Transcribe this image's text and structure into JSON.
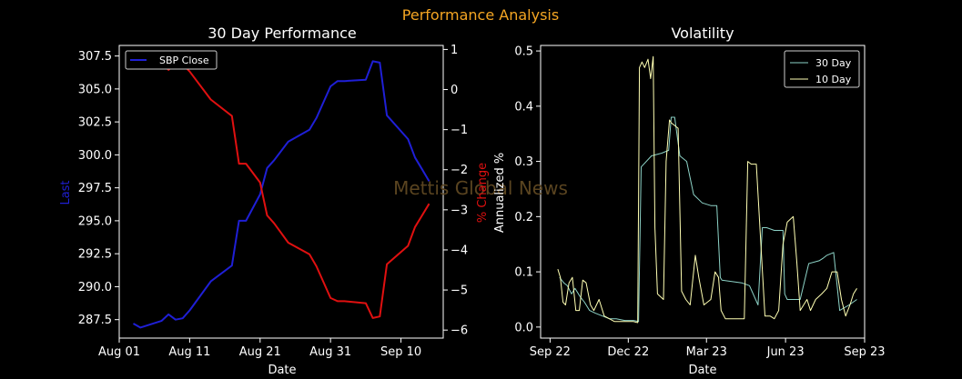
{
  "suptitle": "Performance Analysis",
  "watermark": "Mettis Global News",
  "colors": {
    "background": "#000000",
    "suptitle": "#f5a623",
    "axes": "#ffffff",
    "last_series": "#1f1fd6",
    "pct_series": "#e01010",
    "vol30": "#8dd3c7",
    "vol10": "#ffffb3",
    "watermark": "#5a4420"
  },
  "chart_data": [
    {
      "type": "line",
      "title": "30 Day Performance",
      "xlabel": "Date",
      "ylabel": "Last",
      "ylabel_right": "% Change",
      "xlim": [
        "2023-08-01",
        "2023-09-16"
      ],
      "ylim": [
        286.1,
        308.3
      ],
      "ylim_right": [
        -6.2,
        1.1
      ],
      "x_ticks": [
        {
          "date": "2023-08-01",
          "label": "Aug 01"
        },
        {
          "date": "2023-08-11",
          "label": "Aug 11"
        },
        {
          "date": "2023-08-21",
          "label": "Aug 21"
        },
        {
          "date": "2023-08-31",
          "label": "Aug 31"
        },
        {
          "date": "2023-09-10",
          "label": "Sep 10"
        }
      ],
      "y_ticks": [
        "287.5",
        "290.0",
        "292.5",
        "295.0",
        "297.5",
        "300.0",
        "302.5",
        "305.0",
        "307.5"
      ],
      "y_ticks_right": [
        "1",
        "0",
        "-1",
        "-2",
        "-3",
        "-4",
        "-5",
        "-6"
      ],
      "legend": {
        "position": "top-left",
        "entries": [
          "SBP Close"
        ]
      },
      "grid": false,
      "series": [
        {
          "name": "SBP Close",
          "axis": "left",
          "x": [
            "2023-08-03",
            "2023-08-04",
            "2023-08-07",
            "2023-08-08",
            "2023-08-09",
            "2023-08-10",
            "2023-08-11",
            "2023-08-14",
            "2023-08-17",
            "2023-08-18",
            "2023-08-19",
            "2023-08-21",
            "2023-08-22",
            "2023-08-23",
            "2023-08-25",
            "2023-08-28",
            "2023-08-29",
            "2023-08-31",
            "2023-09-01",
            "2023-09-02",
            "2023-09-05",
            "2023-09-06",
            "2023-09-07",
            "2023-09-08",
            "2023-09-11",
            "2023-09-12",
            "2023-09-13",
            "2023-09-14"
          ],
          "values": [
            287.2,
            286.9,
            287.4,
            287.9,
            287.5,
            287.6,
            288.2,
            290.4,
            291.6,
            295.0,
            295.0,
            297.0,
            299.0,
            299.6,
            301.0,
            301.9,
            302.8,
            305.2,
            305.6,
            305.6,
            305.7,
            307.1,
            307.0,
            303.0,
            301.2,
            299.8,
            298.9,
            298.0
          ]
        },
        {
          "name": "% Change",
          "axis": "right",
          "x": [
            "2023-08-03",
            "2023-08-04",
            "2023-08-07",
            "2023-08-08",
            "2023-08-09",
            "2023-08-10",
            "2023-08-11",
            "2023-08-14",
            "2023-08-17",
            "2023-08-18",
            "2023-08-19",
            "2023-08-21",
            "2023-08-22",
            "2023-08-23",
            "2023-08-25",
            "2023-08-28",
            "2023-08-29",
            "2023-08-31",
            "2023-09-01",
            "2023-09-02",
            "2023-09-05",
            "2023-09-06",
            "2023-09-07",
            "2023-09-08",
            "2023-09-11",
            "2023-09-12",
            "2023-09-13",
            "2023-09-14"
          ],
          "values": [
            0.77,
            0.85,
            0.67,
            0.49,
            0.65,
            0.63,
            0.45,
            -0.25,
            -0.66,
            -1.85,
            -1.85,
            -2.32,
            -3.14,
            -3.34,
            -3.82,
            -4.11,
            -4.41,
            -5.2,
            -5.28,
            -5.28,
            -5.33,
            -5.7,
            -5.66,
            -4.36,
            -3.9,
            -3.43,
            -3.14,
            -2.85
          ]
        }
      ]
    },
    {
      "type": "line",
      "title": "Volatility",
      "xlabel": "Date",
      "ylabel": "Annualized %",
      "xlim": [
        "2022-09-11",
        "2023-09-23"
      ],
      "ylim": [
        -0.02,
        0.51
      ],
      "x_ticks": [
        {
          "date": "2022-09-22",
          "label": "Sep 22"
        },
        {
          "date": "2022-12-22",
          "label": "Dec 22"
        },
        {
          "date": "2023-03-23",
          "label": "Mar 23"
        },
        {
          "date": "2023-06-23",
          "label": "Jun 23"
        },
        {
          "date": "2023-09-23",
          "label": "Sep 23"
        }
      ],
      "y_ticks": [
        "0.0",
        "0.1",
        "0.2",
        "0.3",
        "0.4",
        "0.5"
      ],
      "legend": {
        "position": "top-right",
        "entries": [
          "30 Day",
          "10 Day"
        ]
      },
      "grid": false,
      "series": [
        {
          "name": "30 Day",
          "x": [
            "2022-10-03",
            "2022-10-08",
            "2022-10-12",
            "2022-10-17",
            "2022-10-21",
            "2022-10-27",
            "2022-11-01",
            "2022-11-07",
            "2022-11-14",
            "2022-11-22",
            "2022-11-30",
            "2022-12-08",
            "2022-12-18",
            "2022-12-28",
            "2023-01-03",
            "2023-01-06",
            "2023-01-18",
            "2023-01-30",
            "2023-02-07",
            "2023-02-10",
            "2023-02-14",
            "2023-02-20",
            "2023-02-28",
            "2023-03-08",
            "2023-03-18",
            "2023-03-28",
            "2023-04-04",
            "2023-04-08",
            "2023-04-10",
            "2023-05-03",
            "2023-05-12",
            "2023-05-22",
            "2023-05-27",
            "2023-06-01",
            "2023-06-10",
            "2023-06-20",
            "2023-06-22",
            "2023-06-25",
            "2023-07-05",
            "2023-07-10",
            "2023-07-20",
            "2023-08-01",
            "2023-08-06",
            "2023-08-10",
            "2023-08-18",
            "2023-08-25",
            "2023-09-05",
            "2023-09-14"
          ],
          "values": [
            0.09,
            0.08,
            0.075,
            0.06,
            0.07,
            0.055,
            0.045,
            0.03,
            0.025,
            0.02,
            0.015,
            0.015,
            0.012,
            0.012,
            0.01,
            0.29,
            0.31,
            0.315,
            0.32,
            0.38,
            0.38,
            0.31,
            0.3,
            0.24,
            0.225,
            0.22,
            0.22,
            0.09,
            0.085,
            0.08,
            0.075,
            0.04,
            0.18,
            0.18,
            0.175,
            0.175,
            0.06,
            0.05,
            0.05,
            0.05,
            0.115,
            0.12,
            0.125,
            0.13,
            0.135,
            0.03,
            0.04,
            0.05
          ]
        },
        {
          "name": "10 Day",
          "x": [
            "2022-10-01",
            "2022-10-04",
            "2022-10-07",
            "2022-10-10",
            "2022-10-14",
            "2022-10-18",
            "2022-10-22",
            "2022-10-26",
            "2022-10-30",
            "2022-11-03",
            "2022-11-08",
            "2022-11-12",
            "2022-11-18",
            "2022-11-24",
            "2022-11-30",
            "2022-12-06",
            "2022-12-12",
            "2022-12-20",
            "2022-12-28",
            "2023-01-02",
            "2023-01-04",
            "2023-01-07",
            "2023-01-10",
            "2023-01-14",
            "2023-01-17",
            "2023-01-20",
            "2023-01-22",
            "2023-01-25",
            "2023-02-01",
            "2023-02-04",
            "2023-02-08",
            "2023-02-10",
            "2023-02-18",
            "2023-02-22",
            "2023-02-27",
            "2023-03-04",
            "2023-03-10",
            "2023-03-14",
            "2023-03-20",
            "2023-03-28",
            "2023-04-02",
            "2023-04-06",
            "2023-04-09",
            "2023-04-14",
            "2023-04-18",
            "2023-04-24",
            "2023-05-02",
            "2023-05-06",
            "2023-05-10",
            "2023-05-14",
            "2023-05-20",
            "2023-05-26",
            "2023-05-30",
            "2023-06-05",
            "2023-06-10",
            "2023-06-15",
            "2023-06-20",
            "2023-06-25",
            "2023-07-02",
            "2023-07-06",
            "2023-07-10",
            "2023-07-14",
            "2023-07-18",
            "2023-07-22",
            "2023-07-28",
            "2023-08-04",
            "2023-08-10",
            "2023-08-16",
            "2023-08-22",
            "2023-08-27",
            "2023-09-01",
            "2023-09-06",
            "2023-09-10",
            "2023-09-14"
          ],
          "values": [
            0.105,
            0.09,
            0.045,
            0.04,
            0.08,
            0.09,
            0.03,
            0.03,
            0.085,
            0.08,
            0.04,
            0.03,
            0.05,
            0.02,
            0.015,
            0.01,
            0.01,
            0.01,
            0.01,
            0.008,
            0.47,
            0.48,
            0.47,
            0.485,
            0.45,
            0.49,
            0.18,
            0.06,
            0.05,
            0.3,
            0.375,
            0.37,
            0.36,
            0.065,
            0.05,
            0.04,
            0.13,
            0.09,
            0.04,
            0.05,
            0.1,
            0.09,
            0.03,
            0.015,
            0.015,
            0.015,
            0.015,
            0.015,
            0.3,
            0.295,
            0.295,
            0.13,
            0.02,
            0.02,
            0.015,
            0.03,
            0.15,
            0.19,
            0.2,
            0.12,
            0.03,
            0.04,
            0.05,
            0.03,
            0.05,
            0.06,
            0.07,
            0.1,
            0.1,
            0.05,
            0.02,
            0.04,
            0.06,
            0.07
          ]
        }
      ]
    }
  ]
}
